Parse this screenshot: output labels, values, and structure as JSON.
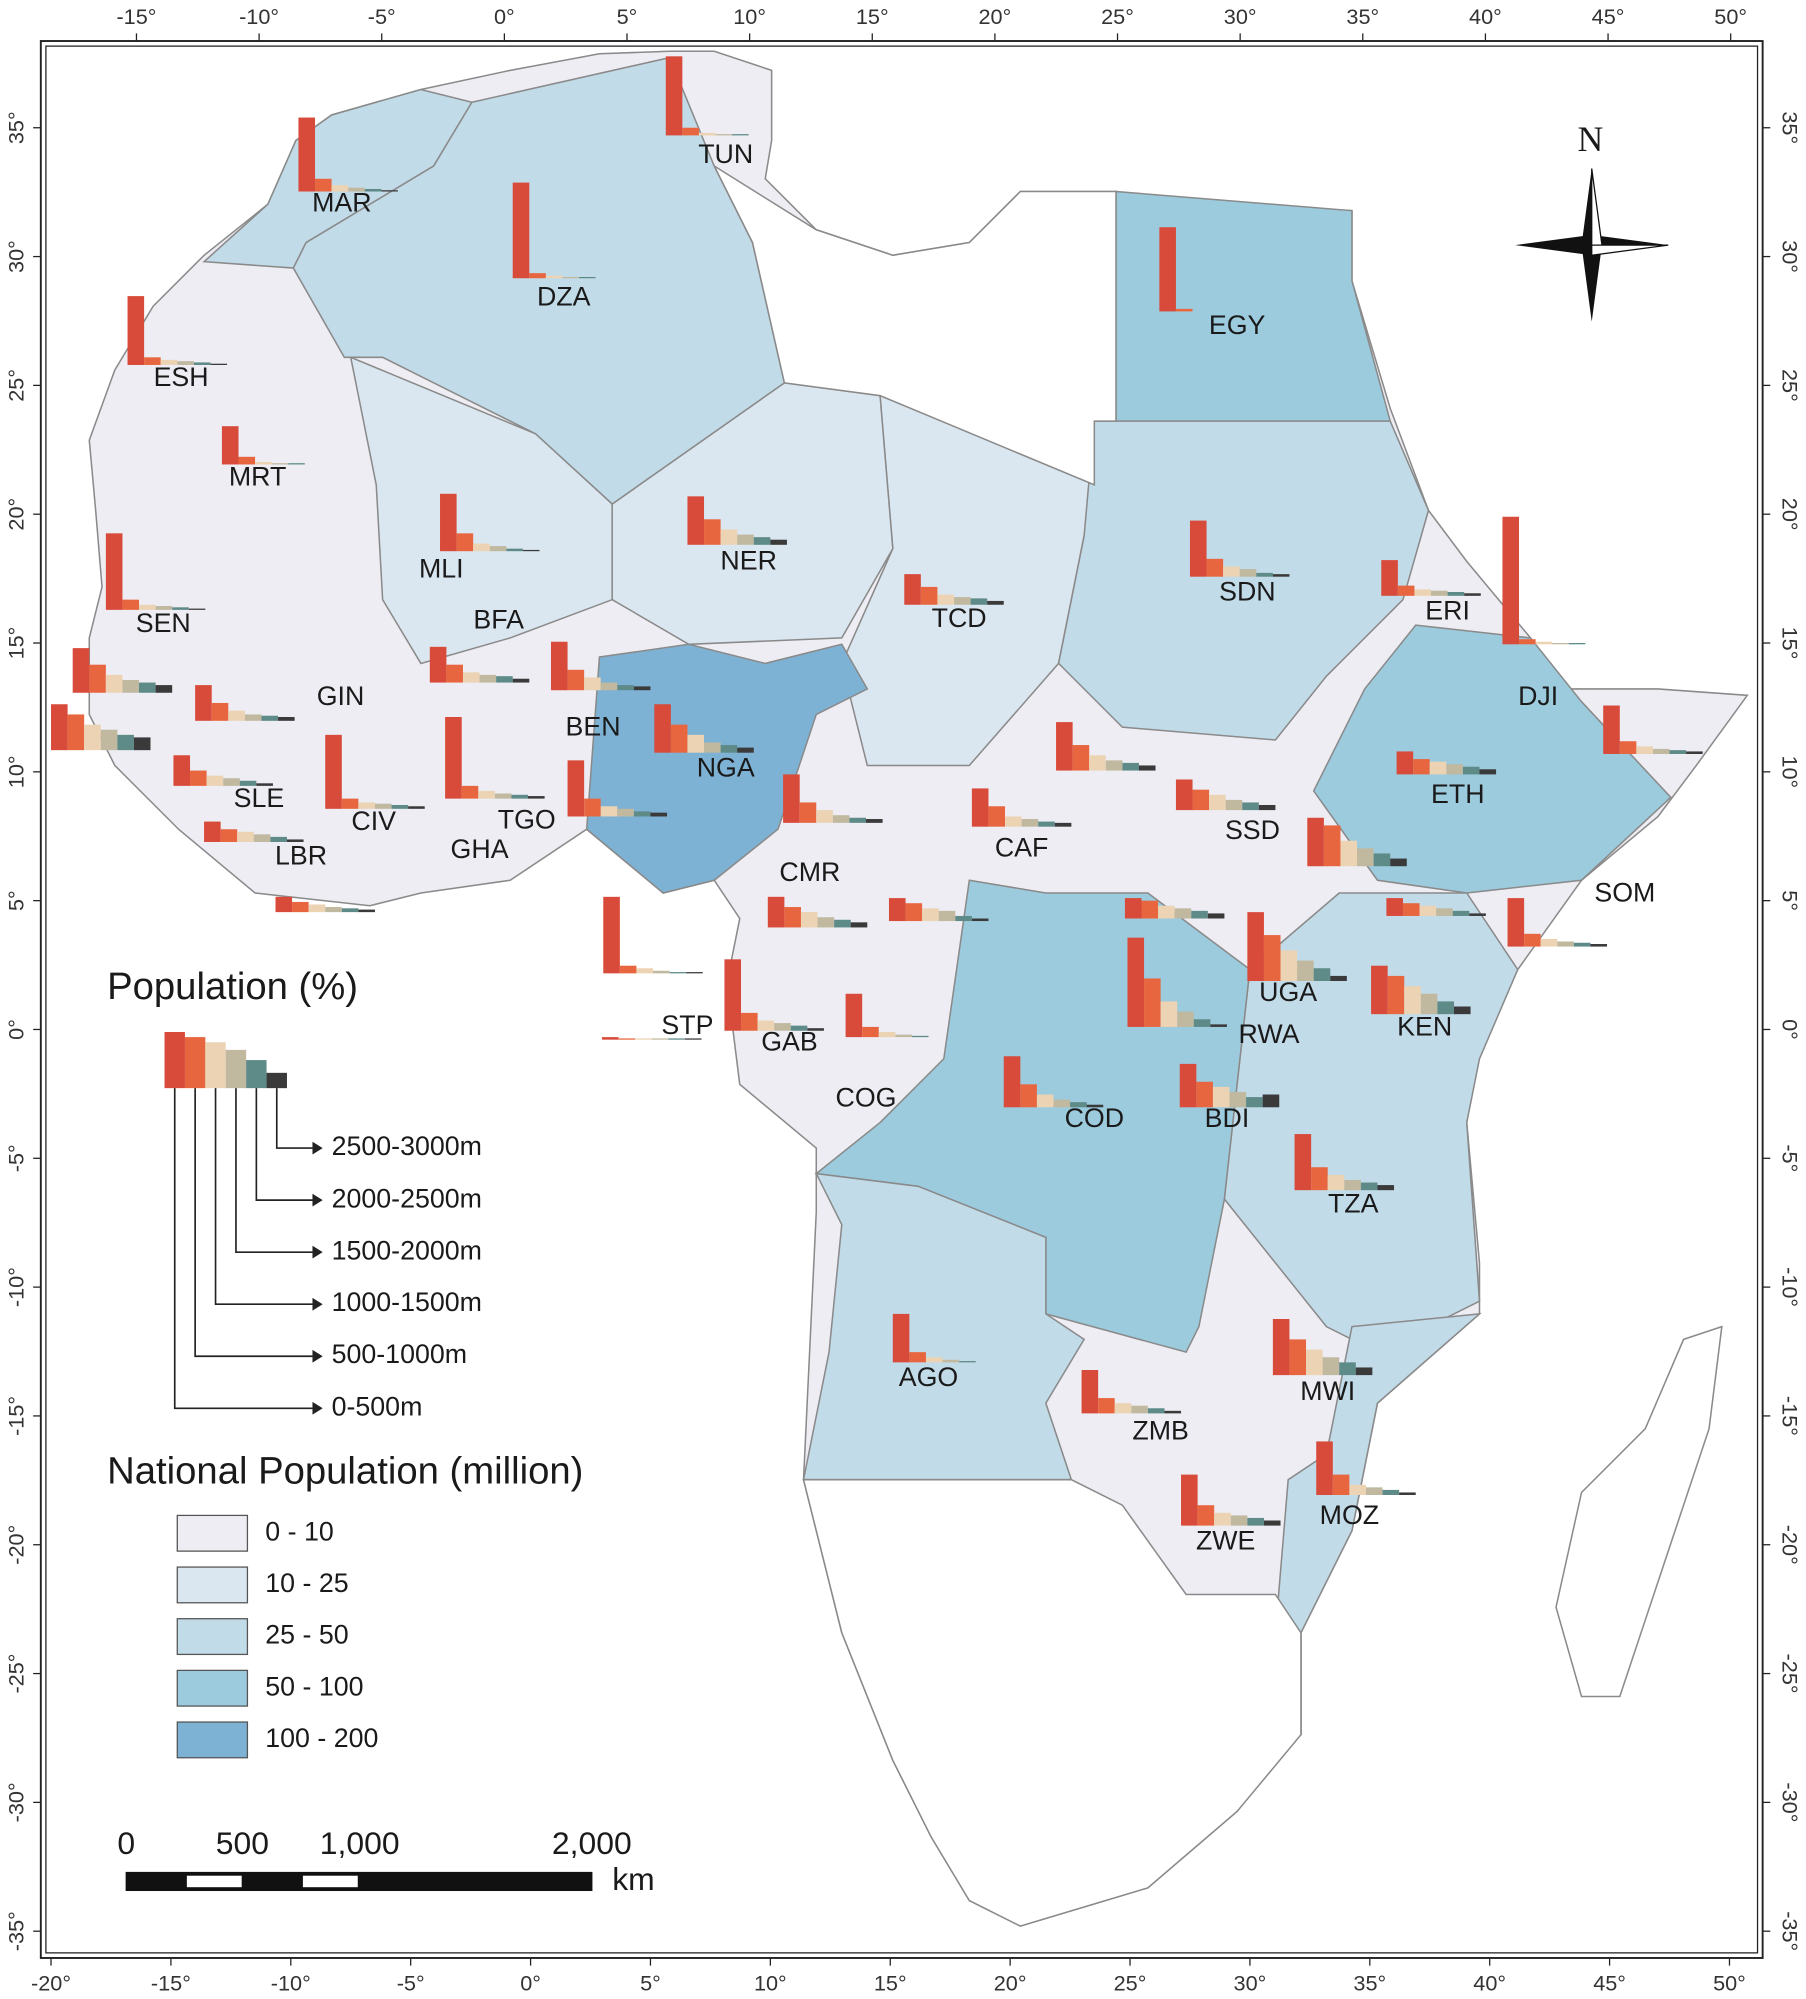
{
  "north": "N",
  "legend": {
    "population_title": "Population (%)",
    "bands": [
      "0-500m",
      "500-1000m",
      "1000-1500m",
      "1500-2000m",
      "2000-2500m",
      "2500-3000m"
    ],
    "band_colors": [
      "#d84a3a",
      "#e8663f",
      "#ebd3b4",
      "#c0b9a0",
      "#5e8a88",
      "#3a3a3a"
    ],
    "national_title": "National Population (million)",
    "classes": [
      {
        "label": "0 - 10",
        "color": "#ededf3"
      },
      {
        "label": "10 - 25",
        "color": "#dbe7f0"
      },
      {
        "label": "25 - 50",
        "color": "#c2dbe8"
      },
      {
        "label": "50 - 100",
        "color": "#9ccbdd"
      },
      {
        "label": "100 - 200",
        "color": "#7eb2d4"
      }
    ]
  },
  "scale_bar": {
    "labels": [
      "0",
      "500",
      "1,000",
      "2,000"
    ],
    "unit": "km"
  },
  "axes": {
    "top": [
      {
        "value": -15,
        "label": "-15°"
      },
      {
        "value": -10,
        "label": "-10°"
      },
      {
        "value": -5,
        "label": "-5°"
      },
      {
        "value": 0,
        "label": "0°"
      },
      {
        "value": 5,
        "label": "5°"
      },
      {
        "value": 10,
        "label": "10°"
      },
      {
        "value": 15,
        "label": "15°"
      },
      {
        "value": 20,
        "label": "20°"
      },
      {
        "value": 25,
        "label": "25°"
      },
      {
        "value": 30,
        "label": "30°"
      },
      {
        "value": 35,
        "label": "35°"
      },
      {
        "value": 40,
        "label": "40°"
      },
      {
        "value": 45,
        "label": "45°"
      },
      {
        "value": 50,
        "label": "50°"
      }
    ],
    "bottom": [
      {
        "value": -20,
        "label": "-20°"
      },
      {
        "value": -15,
        "label": "-15°"
      },
      {
        "value": -10,
        "label": "-10°"
      },
      {
        "value": -5,
        "label": "-5°"
      },
      {
        "value": 0,
        "label": "0°"
      },
      {
        "value": 5,
        "label": "5°"
      },
      {
        "value": 10,
        "label": "10°"
      },
      {
        "value": 15,
        "label": "15°"
      },
      {
        "value": 20,
        "label": "20°"
      },
      {
        "value": 25,
        "label": "25°"
      },
      {
        "value": 30,
        "label": "30°"
      },
      {
        "value": 35,
        "label": "35°"
      },
      {
        "value": 40,
        "label": "40°"
      },
      {
        "value": 45,
        "label": "45°"
      },
      {
        "value": 50,
        "label": "50°"
      }
    ],
    "left": [
      {
        "value": 35,
        "label": "35°"
      },
      {
        "value": 30,
        "label": "30°"
      },
      {
        "value": 25,
        "label": "25°"
      },
      {
        "value": 20,
        "label": "20°"
      },
      {
        "value": 15,
        "label": "15°"
      },
      {
        "value": 10,
        "label": "10°"
      },
      {
        "value": 5,
        "label": "5°"
      },
      {
        "value": 0,
        "label": "0°"
      },
      {
        "value": -5,
        "label": "-5°"
      },
      {
        "value": -10,
        "label": "-10°"
      },
      {
        "value": -15,
        "label": "-15°"
      },
      {
        "value": -20,
        "label": "-20°"
      },
      {
        "value": -25,
        "label": "-25°"
      },
      {
        "value": -30,
        "label": "-30°"
      },
      {
        "value": -35,
        "label": "-35°"
      }
    ],
    "right": [
      {
        "value": 35,
        "label": "35°"
      },
      {
        "value": 30,
        "label": "30°"
      },
      {
        "value": 25,
        "label": "25°"
      },
      {
        "value": 20,
        "label": "20°"
      },
      {
        "value": 15,
        "label": "15°"
      },
      {
        "value": 10,
        "label": "10°"
      },
      {
        "value": 5,
        "label": "5°"
      },
      {
        "value": 0,
        "label": "0°"
      },
      {
        "value": -5,
        "label": "-5°"
      },
      {
        "value": -10,
        "label": "-10°"
      },
      {
        "value": -15,
        "label": "-15°"
      },
      {
        "value": -20,
        "label": "-20°"
      },
      {
        "value": -25,
        "label": "-25°"
      },
      {
        "value": -30,
        "label": "-30°"
      },
      {
        "value": -35,
        "label": "-35°"
      }
    ]
  },
  "countries": [
    {
      "label": "TUN",
      "values": [
        62,
        6,
        2,
        1,
        1,
        0
      ]
    },
    {
      "label": "MAR",
      "values": [
        58,
        10,
        5,
        3,
        2,
        1
      ]
    },
    {
      "label": "DZA",
      "values": [
        75,
        4,
        2,
        1,
        1,
        0
      ]
    },
    {
      "label": "EGY",
      "values": [
        66,
        2,
        0,
        0,
        0,
        0
      ]
    },
    {
      "label": "ESH",
      "values": [
        54,
        6,
        4,
        3,
        2,
        1
      ]
    },
    {
      "label": "MRT",
      "values": [
        30,
        6,
        2,
        1,
        1,
        0
      ]
    },
    {
      "label": "MLI",
      "values": [
        45,
        14,
        6,
        4,
        2,
        1
      ]
    },
    {
      "label": "NER",
      "values": [
        38,
        20,
        12,
        8,
        6,
        4
      ]
    },
    {
      "label": "TCD",
      "values": [
        24,
        14,
        8,
        6,
        5,
        3
      ]
    },
    {
      "label": "SDN",
      "values": [
        44,
        14,
        8,
        6,
        3,
        2
      ]
    },
    {
      "label": "ERI",
      "values": [
        28,
        8,
        5,
        4,
        3,
        2
      ]
    },
    {
      "label": "DJI",
      "values": [
        100,
        4,
        2,
        1,
        1,
        0
      ]
    },
    {
      "label": "SEN",
      "values": [
        60,
        8,
        4,
        3,
        2,
        1
      ]
    },
    {
      "label": "BFA",
      "values": [
        28,
        14,
        8,
        6,
        5,
        3
      ]
    },
    {
      "label": "GIN",
      "values": [
        28,
        14,
        8,
        5,
        4,
        3
      ]
    },
    {
      "label": null,
      "values": [
        35,
        22,
        14,
        10,
        8,
        6
      ]
    },
    {
      "label": null,
      "values": [
        36,
        28,
        20,
        16,
        12,
        10
      ]
    },
    {
      "label": "SLE",
      "values": [
        24,
        12,
        8,
        6,
        4,
        2
      ]
    },
    {
      "label": "LBR",
      "values": [
        16,
        10,
        8,
        6,
        4,
        2
      ]
    },
    {
      "label": "CIV",
      "values": [
        58,
        8,
        5,
        4,
        3,
        2
      ]
    },
    {
      "label": "TGO",
      "values": [
        64,
        10,
        6,
        4,
        3,
        2
      ]
    },
    {
      "label": "GHA",
      "values": [
        12,
        8,
        6,
        4,
        3,
        2
      ]
    },
    {
      "label": "BEN",
      "values": [
        38,
        16,
        10,
        6,
        4,
        3
      ]
    },
    {
      "label": null,
      "values": [
        44,
        14,
        8,
        6,
        4,
        3
      ]
    },
    {
      "label": "NGA",
      "values": [
        38,
        22,
        14,
        8,
        6,
        4
      ]
    },
    {
      "label": null,
      "values": [
        38,
        16,
        10,
        6,
        4,
        3
      ]
    },
    {
      "label": "CMR",
      "values": [
        24,
        16,
        12,
        8,
        6,
        4
      ]
    },
    {
      "label": "CAF",
      "values": [
        30,
        16,
        8,
        6,
        4,
        3
      ]
    },
    {
      "label": null,
      "values": [
        38,
        20,
        12,
        8,
        6,
        4
      ]
    },
    {
      "label": "SSD",
      "values": [
        24,
        16,
        12,
        8,
        6,
        4
      ]
    },
    {
      "label": "ETH",
      "values": [
        18,
        12,
        10,
        8,
        6,
        4
      ]
    },
    {
      "label": "SOM",
      "values": [
        38,
        10,
        6,
        4,
        3,
        2
      ]
    },
    {
      "label": null,
      "values": [
        38,
        10,
        6,
        4,
        3,
        2
      ]
    },
    {
      "label": null,
      "values": [
        38,
        32,
        20,
        14,
        10,
        6
      ]
    },
    {
      "label": null,
      "values": [
        14,
        10,
        8,
        6,
        4,
        2
      ]
    },
    {
      "label": "KEN",
      "values": [
        38,
        30,
        22,
        16,
        10,
        6
      ]
    },
    {
      "label": "UGA",
      "values": [
        54,
        36,
        24,
        16,
        10,
        4
      ]
    },
    {
      "label": "RWA",
      "values": [
        70,
        38,
        20,
        12,
        6,
        2
      ]
    },
    {
      "label": "BDI",
      "values": [
        34,
        20,
        16,
        12,
        8,
        10
      ]
    },
    {
      "label": "COD",
      "values": [
        40,
        18,
        10,
        6,
        4,
        2
      ]
    },
    {
      "label": "COG",
      "values": [
        34,
        8,
        4,
        2,
        1,
        0
      ]
    },
    {
      "label": "GAB",
      "values": [
        56,
        14,
        8,
        6,
        4,
        2
      ]
    },
    {
      "label": "STP",
      "values": [
        2,
        1,
        1,
        1,
        1,
        1
      ]
    },
    {
      "label": null,
      "values": [
        60,
        6,
        4,
        2,
        1,
        1
      ]
    },
    {
      "label": null,
      "values": [
        18,
        14,
        10,
        8,
        4,
        2
      ]
    },
    {
      "label": null,
      "values": [
        16,
        14,
        10,
        8,
        6,
        4
      ]
    },
    {
      "label": "TZA",
      "values": [
        44,
        18,
        12,
        8,
        6,
        4
      ]
    },
    {
      "label": "AGO",
      "values": [
        38,
        8,
        4,
        2,
        1,
        0
      ]
    },
    {
      "label": "ZMB",
      "values": [
        34,
        12,
        8,
        6,
        4,
        2
      ]
    },
    {
      "label": "MWI",
      "values": [
        44,
        28,
        20,
        14,
        10,
        6
      ]
    },
    {
      "label": "MOZ",
      "values": [
        42,
        16,
        8,
        6,
        4,
        2
      ]
    },
    {
      "label": "ZWE",
      "values": [
        40,
        16,
        10,
        8,
        6,
        4
      ]
    }
  ]
}
